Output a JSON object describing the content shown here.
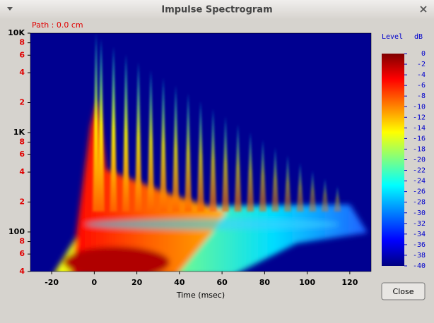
{
  "window": {
    "title": "Impulse Spectrogram"
  },
  "path_label": "Path : 0.0 cm",
  "chart_data": {
    "type": "spectrogram",
    "x_label": "Time (msec)",
    "xlim": [
      -30,
      130
    ],
    "xticks": [
      -20,
      0,
      20,
      40,
      60,
      80,
      100,
      120
    ],
    "ylim": [
      40,
      10000
    ],
    "y_scale": "log",
    "yticks": [
      {
        "value": 40,
        "label": "4"
      },
      {
        "value": 60,
        "label": "6"
      },
      {
        "value": 80,
        "label": "8"
      },
      100,
      {
        "value": 200,
        "label": "2"
      },
      {
        "value": 400,
        "label": "4"
      },
      {
        "value": 600,
        "label": "6"
      },
      {
        "value": 800,
        "label": "8"
      },
      {
        "value": 1000,
        "label": "1K"
      },
      {
        "value": 2000,
        "label": "2"
      },
      {
        "value": 4000,
        "label": "4"
      },
      {
        "value": 6000,
        "label": "6"
      },
      {
        "value": 8000,
        "label": "8"
      },
      {
        "value": 10000,
        "label": "10K"
      }
    ]
  },
  "colorbar": {
    "title": "Level",
    "unit": "dB",
    "lim": [
      -40,
      0
    ],
    "ticks": [
      0,
      -2,
      -4,
      -6,
      -8,
      -10,
      -12,
      -14,
      -16,
      -18,
      -20,
      -22,
      -24,
      -26,
      -28,
      -30,
      -32,
      -34,
      -36,
      -38,
      -40
    ]
  },
  "button": {
    "label": "Close"
  }
}
